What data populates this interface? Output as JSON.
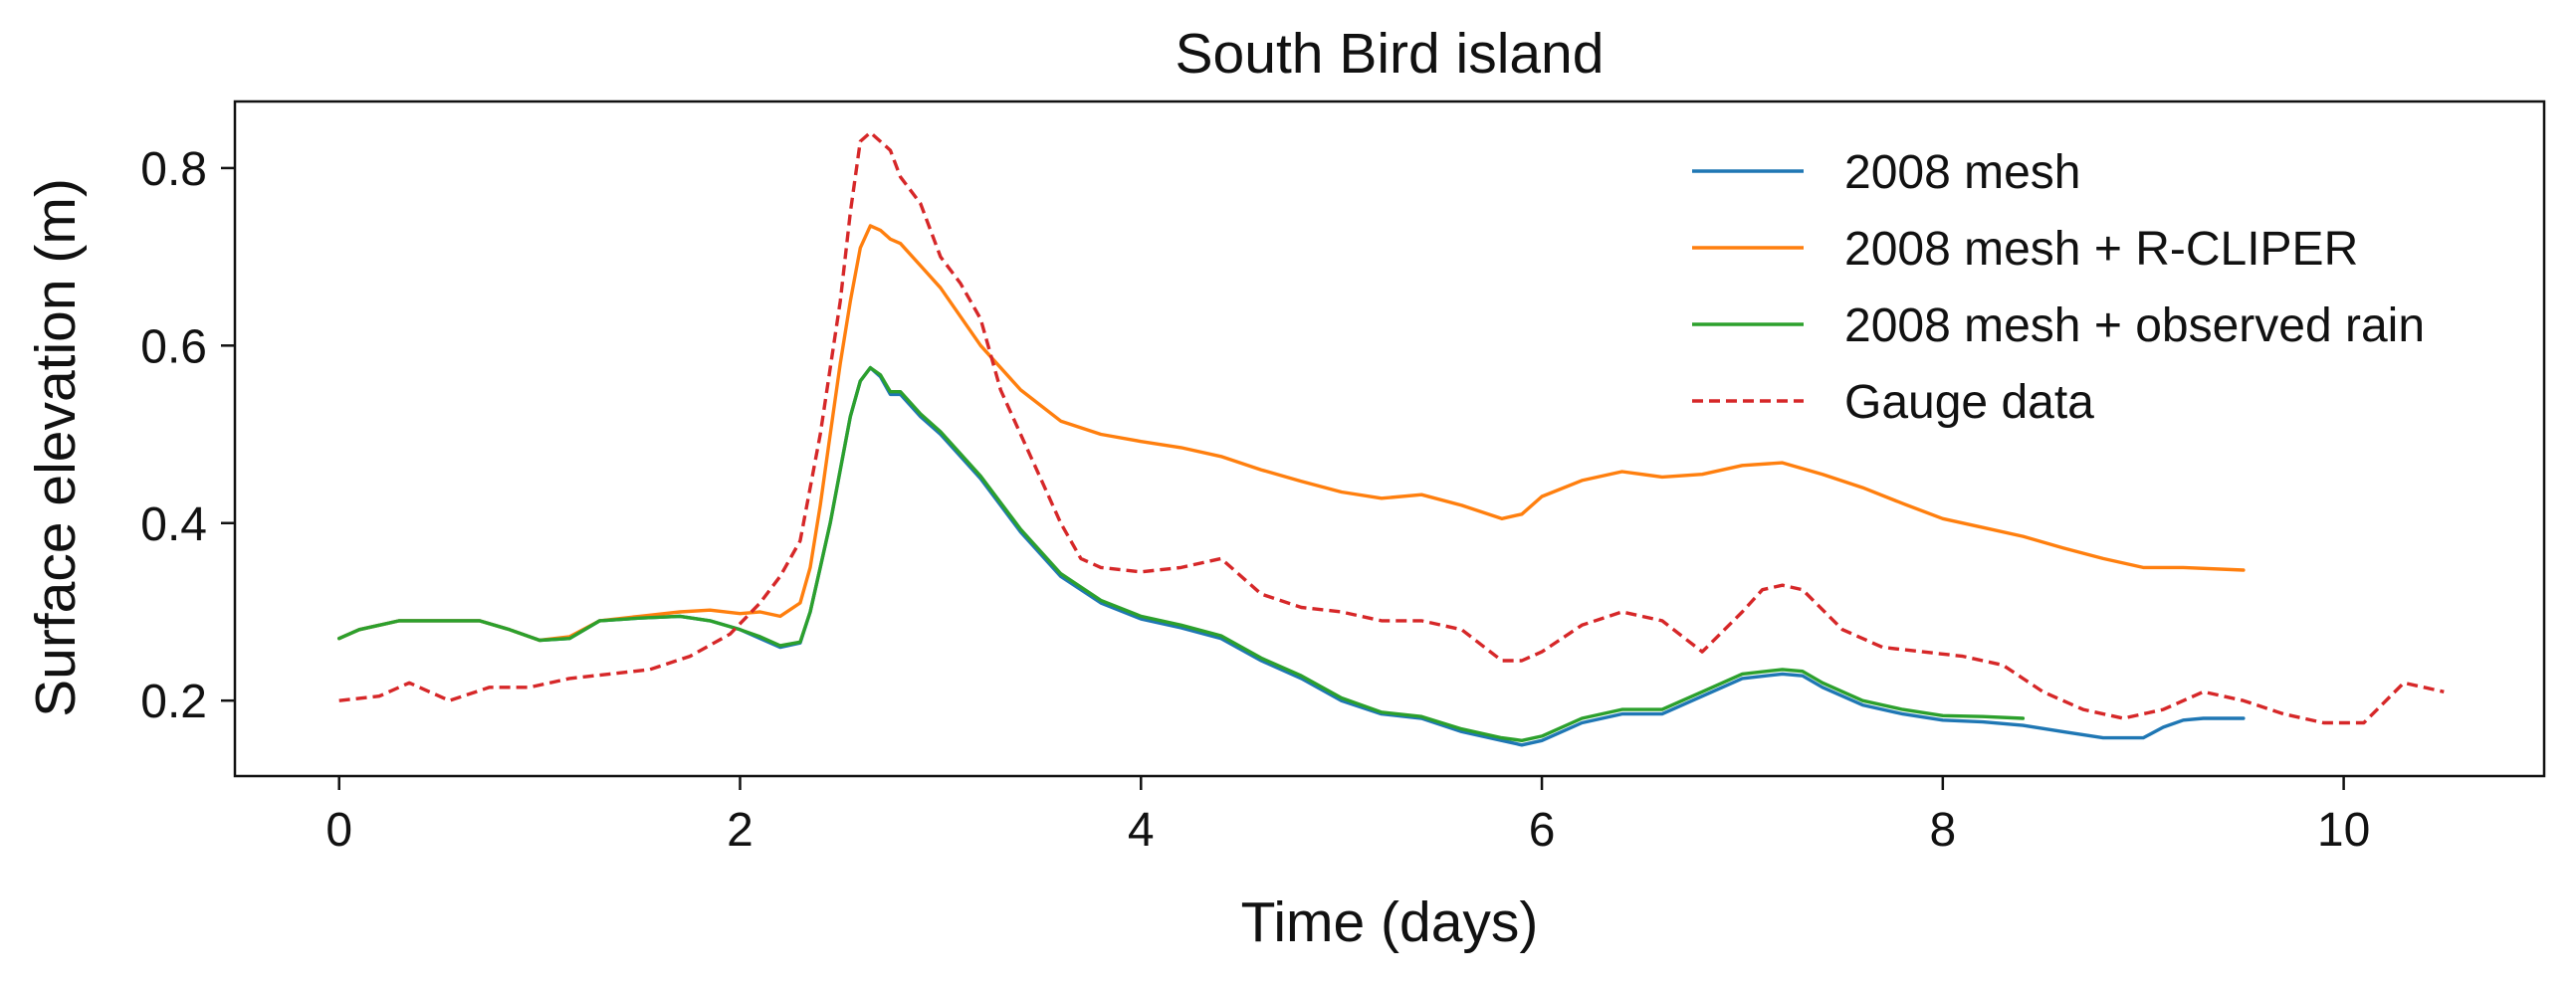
{
  "chart_data": {
    "type": "line",
    "title": "South Bird island",
    "xlabel": "Time (days)",
    "ylabel": "Surface elevation (m)",
    "xlim": [
      -0.52,
      11.0
    ],
    "ylim": [
      0.115,
      0.875
    ],
    "xticks": [
      0,
      2,
      4,
      6,
      8,
      10
    ],
    "xtick_labels": [
      "0",
      "2",
      "4",
      "6",
      "8",
      "10"
    ],
    "yticks": [
      0.2,
      0.4,
      0.6,
      0.8
    ],
    "ytick_labels": [
      "0.2",
      "0.4",
      "0.6",
      "0.8"
    ],
    "grid": false,
    "legend_position": "top-right",
    "series": [
      {
        "name": "2008 mesh",
        "color": "#1f77b4",
        "dash": "solid",
        "x": [
          0.0,
          0.1,
          0.3,
          0.5,
          0.7,
          0.85,
          1.0,
          1.15,
          1.3,
          1.5,
          1.7,
          1.85,
          2.0,
          2.1,
          2.2,
          2.3,
          2.35,
          2.4,
          2.45,
          2.5,
          2.55,
          2.6,
          2.65,
          2.7,
          2.75,
          2.8,
          2.9,
          3.0,
          3.2,
          3.4,
          3.6,
          3.8,
          4.0,
          4.2,
          4.4,
          4.6,
          4.8,
          5.0,
          5.2,
          5.4,
          5.6,
          5.8,
          5.9,
          6.0,
          6.2,
          6.4,
          6.6,
          6.8,
          7.0,
          7.2,
          7.3,
          7.4,
          7.6,
          7.8,
          8.0,
          8.2,
          8.4,
          8.6,
          8.8,
          9.0,
          9.1,
          9.2,
          9.3,
          9.5
        ],
        "y": [
          0.27,
          0.28,
          0.29,
          0.29,
          0.29,
          0.28,
          0.268,
          0.27,
          0.29,
          0.293,
          0.295,
          0.29,
          0.28,
          0.27,
          0.26,
          0.265,
          0.3,
          0.35,
          0.4,
          0.46,
          0.52,
          0.56,
          0.575,
          0.565,
          0.545,
          0.545,
          0.52,
          0.5,
          0.45,
          0.39,
          0.34,
          0.31,
          0.292,
          0.282,
          0.27,
          0.245,
          0.225,
          0.2,
          0.185,
          0.18,
          0.165,
          0.155,
          0.15,
          0.155,
          0.175,
          0.185,
          0.185,
          0.205,
          0.225,
          0.23,
          0.228,
          0.215,
          0.195,
          0.185,
          0.178,
          0.176,
          0.172,
          0.165,
          0.158,
          0.158,
          0.17,
          0.178,
          0.18,
          0.18
        ]
      },
      {
        "name": "2008 mesh + R-CLIPER",
        "color": "#ff7f0e",
        "dash": "solid",
        "x": [
          0.0,
          0.1,
          0.3,
          0.5,
          0.7,
          0.85,
          1.0,
          1.15,
          1.3,
          1.5,
          1.7,
          1.85,
          2.0,
          2.1,
          2.2,
          2.3,
          2.35,
          2.4,
          2.45,
          2.5,
          2.55,
          2.6,
          2.65,
          2.7,
          2.75,
          2.8,
          2.9,
          3.0,
          3.2,
          3.4,
          3.6,
          3.8,
          4.0,
          4.2,
          4.4,
          4.6,
          4.8,
          5.0,
          5.2,
          5.4,
          5.6,
          5.8,
          5.9,
          6.0,
          6.2,
          6.4,
          6.6,
          6.8,
          7.0,
          7.2,
          7.4,
          7.6,
          7.8,
          8.0,
          8.2,
          8.4,
          8.6,
          8.8,
          9.0,
          9.2,
          9.5
        ],
        "y": [
          0.27,
          0.28,
          0.29,
          0.29,
          0.29,
          0.28,
          0.268,
          0.272,
          0.29,
          0.295,
          0.3,
          0.302,
          0.298,
          0.3,
          0.295,
          0.31,
          0.35,
          0.42,
          0.5,
          0.58,
          0.65,
          0.71,
          0.735,
          0.73,
          0.72,
          0.715,
          0.69,
          0.665,
          0.6,
          0.55,
          0.515,
          0.5,
          0.492,
          0.485,
          0.475,
          0.46,
          0.447,
          0.435,
          0.428,
          0.432,
          0.42,
          0.405,
          0.41,
          0.43,
          0.448,
          0.458,
          0.452,
          0.455,
          0.465,
          0.468,
          0.455,
          0.44,
          0.422,
          0.405,
          0.395,
          0.385,
          0.372,
          0.36,
          0.35,
          0.35,
          0.347
        ]
      },
      {
        "name": "2008 mesh + observed rain",
        "color": "#2ca02c",
        "dash": "solid",
        "x": [
          0.0,
          0.1,
          0.3,
          0.5,
          0.7,
          0.85,
          1.0,
          1.15,
          1.3,
          1.5,
          1.7,
          1.85,
          2.0,
          2.1,
          2.2,
          2.3,
          2.35,
          2.4,
          2.45,
          2.5,
          2.55,
          2.6,
          2.65,
          2.7,
          2.75,
          2.8,
          2.9,
          3.0,
          3.2,
          3.4,
          3.6,
          3.8,
          4.0,
          4.2,
          4.4,
          4.6,
          4.8,
          5.0,
          5.2,
          5.4,
          5.6,
          5.8,
          5.9,
          6.0,
          6.2,
          6.4,
          6.6,
          6.8,
          7.0,
          7.2,
          7.3,
          7.4,
          7.6,
          7.8,
          8.0,
          8.2,
          8.4
        ],
        "y": [
          0.27,
          0.28,
          0.29,
          0.29,
          0.29,
          0.28,
          0.268,
          0.27,
          0.29,
          0.293,
          0.295,
          0.29,
          0.28,
          0.272,
          0.262,
          0.266,
          0.3,
          0.35,
          0.4,
          0.46,
          0.52,
          0.56,
          0.575,
          0.567,
          0.548,
          0.548,
          0.523,
          0.503,
          0.453,
          0.393,
          0.343,
          0.313,
          0.295,
          0.285,
          0.273,
          0.248,
          0.228,
          0.203,
          0.187,
          0.182,
          0.168,
          0.158,
          0.155,
          0.16,
          0.18,
          0.19,
          0.19,
          0.21,
          0.23,
          0.235,
          0.233,
          0.22,
          0.2,
          0.19,
          0.183,
          0.182,
          0.18
        ]
      },
      {
        "name": "Gauge data",
        "color": "#d62728",
        "dash": "dashed",
        "x": [
          0.0,
          0.2,
          0.35,
          0.55,
          0.75,
          0.95,
          1.15,
          1.35,
          1.55,
          1.75,
          1.95,
          2.1,
          2.2,
          2.3,
          2.4,
          2.5,
          2.55,
          2.6,
          2.65,
          2.7,
          2.75,
          2.8,
          2.9,
          3.0,
          3.1,
          3.2,
          3.3,
          3.4,
          3.5,
          3.6,
          3.7,
          3.8,
          4.0,
          4.2,
          4.4,
          4.6,
          4.8,
          5.0,
          5.2,
          5.4,
          5.6,
          5.8,
          5.9,
          6.0,
          6.2,
          6.4,
          6.6,
          6.8,
          7.0,
          7.1,
          7.2,
          7.3,
          7.5,
          7.7,
          7.9,
          8.1,
          8.3,
          8.5,
          8.7,
          8.9,
          9.1,
          9.3,
          9.5,
          9.7,
          9.9,
          10.1,
          10.3,
          10.5
        ],
        "y": [
          0.2,
          0.205,
          0.22,
          0.2,
          0.215,
          0.215,
          0.225,
          0.23,
          0.235,
          0.25,
          0.275,
          0.31,
          0.34,
          0.38,
          0.5,
          0.65,
          0.75,
          0.83,
          0.84,
          0.83,
          0.82,
          0.79,
          0.76,
          0.7,
          0.67,
          0.63,
          0.55,
          0.5,
          0.45,
          0.4,
          0.36,
          0.35,
          0.345,
          0.35,
          0.36,
          0.32,
          0.305,
          0.3,
          0.29,
          0.29,
          0.28,
          0.245,
          0.245,
          0.255,
          0.285,
          0.3,
          0.29,
          0.255,
          0.3,
          0.325,
          0.33,
          0.325,
          0.28,
          0.26,
          0.255,
          0.25,
          0.24,
          0.21,
          0.19,
          0.18,
          0.19,
          0.21,
          0.2,
          0.185,
          0.175,
          0.175,
          0.22,
          0.21
        ]
      }
    ]
  }
}
